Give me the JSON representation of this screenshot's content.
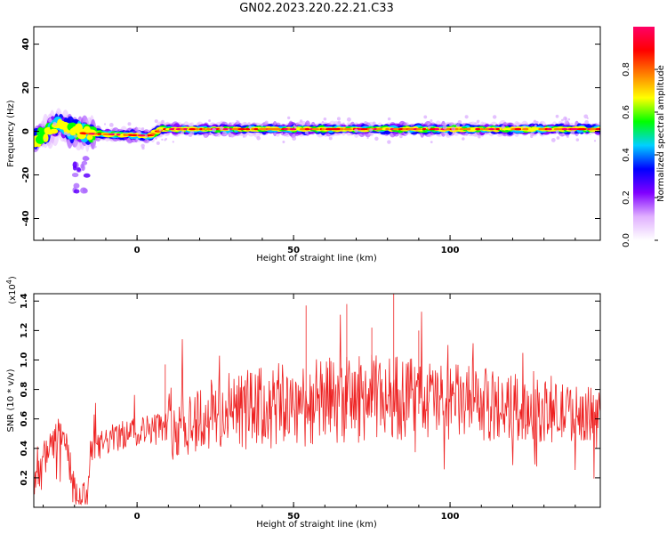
{
  "title": "GN02.2023.220.22.21.C33",
  "colors": {
    "snr_line": "#ee2222",
    "axis": "#000000"
  },
  "chart_data": [
    {
      "type": "heatmap",
      "xlabel": "Height of straight line (km)",
      "ylabel": "Frequency (Hz)",
      "xlim": [
        -33,
        148
      ],
      "ylim": [
        -50,
        48
      ],
      "x_ticks": [
        0,
        50,
        100
      ],
      "y_ticks": [
        -40,
        -20,
        0,
        20,
        40
      ],
      "grid": false,
      "colorbar": {
        "label": "Normalized spectral amplitude",
        "range": [
          0,
          1
        ],
        "ticks": [
          "0.0",
          "0.2",
          "0.4",
          "0.6",
          "0.8"
        ],
        "colormap": [
          "#ffffff",
          "#e0b0ff",
          "#8000ff",
          "#0000ff",
          "#00d0ff",
          "#00ff00",
          "#ffff00",
          "#ff8000",
          "#ff0000",
          "#ff0066"
        ]
      },
      "band": {
        "description_points": [
          {
            "x": -33,
            "freq": -5
          },
          {
            "x": -25,
            "freq": 3
          },
          {
            "x": -17,
            "freq": -1
          },
          {
            "x": 4,
            "freq": -2
          },
          {
            "x": 8,
            "freq": 1
          },
          {
            "x": 148,
            "freq": 1
          }
        ]
      }
    },
    {
      "type": "line",
      "xlabel": "Height of straight line (km)",
      "ylabel": "SNR (10 * v/v)",
      "y_multiplier": "(x10^4)",
      "xlim": [
        -33,
        148
      ],
      "ylim": [
        0,
        1.45
      ],
      "x_ticks": [
        0,
        50,
        100
      ],
      "y_ticks": [
        "0.2",
        "0.4",
        "0.6",
        "0.8",
        "1.0",
        "1.2",
        "1.4"
      ],
      "series": [
        {
          "trend": [
            {
              "x": -33,
              "y": 0.2
            },
            {
              "x": -30,
              "y": 0.3
            },
            {
              "x": -25,
              "y": 0.5
            },
            {
              "x": -23,
              "y": 0.45
            },
            {
              "x": -20,
              "y": 0.1
            },
            {
              "x": -16,
              "y": 0.05
            },
            {
              "x": -15,
              "y": 0.35
            },
            {
              "x": -10,
              "y": 0.45
            },
            {
              "x": 0,
              "y": 0.52
            },
            {
              "x": 8,
              "y": 0.55
            },
            {
              "x": 15,
              "y": 0.58
            },
            {
              "x": 30,
              "y": 0.65
            },
            {
              "x": 60,
              "y": 0.72
            },
            {
              "x": 80,
              "y": 0.75
            },
            {
              "x": 100,
              "y": 0.72
            },
            {
              "x": 130,
              "y": 0.65
            },
            {
              "x": 148,
              "y": 0.63
            }
          ],
          "peaks": [
            {
              "x": 9,
              "y": 0.97
            },
            {
              "x": 54,
              "y": 1.37
            },
            {
              "x": 67,
              "y": 1.38
            },
            {
              "x": 82,
              "y": 1.45
            },
            {
              "x": 75,
              "y": 1.22
            },
            {
              "x": 90,
              "y": 1.2
            }
          ]
        }
      ]
    }
  ]
}
